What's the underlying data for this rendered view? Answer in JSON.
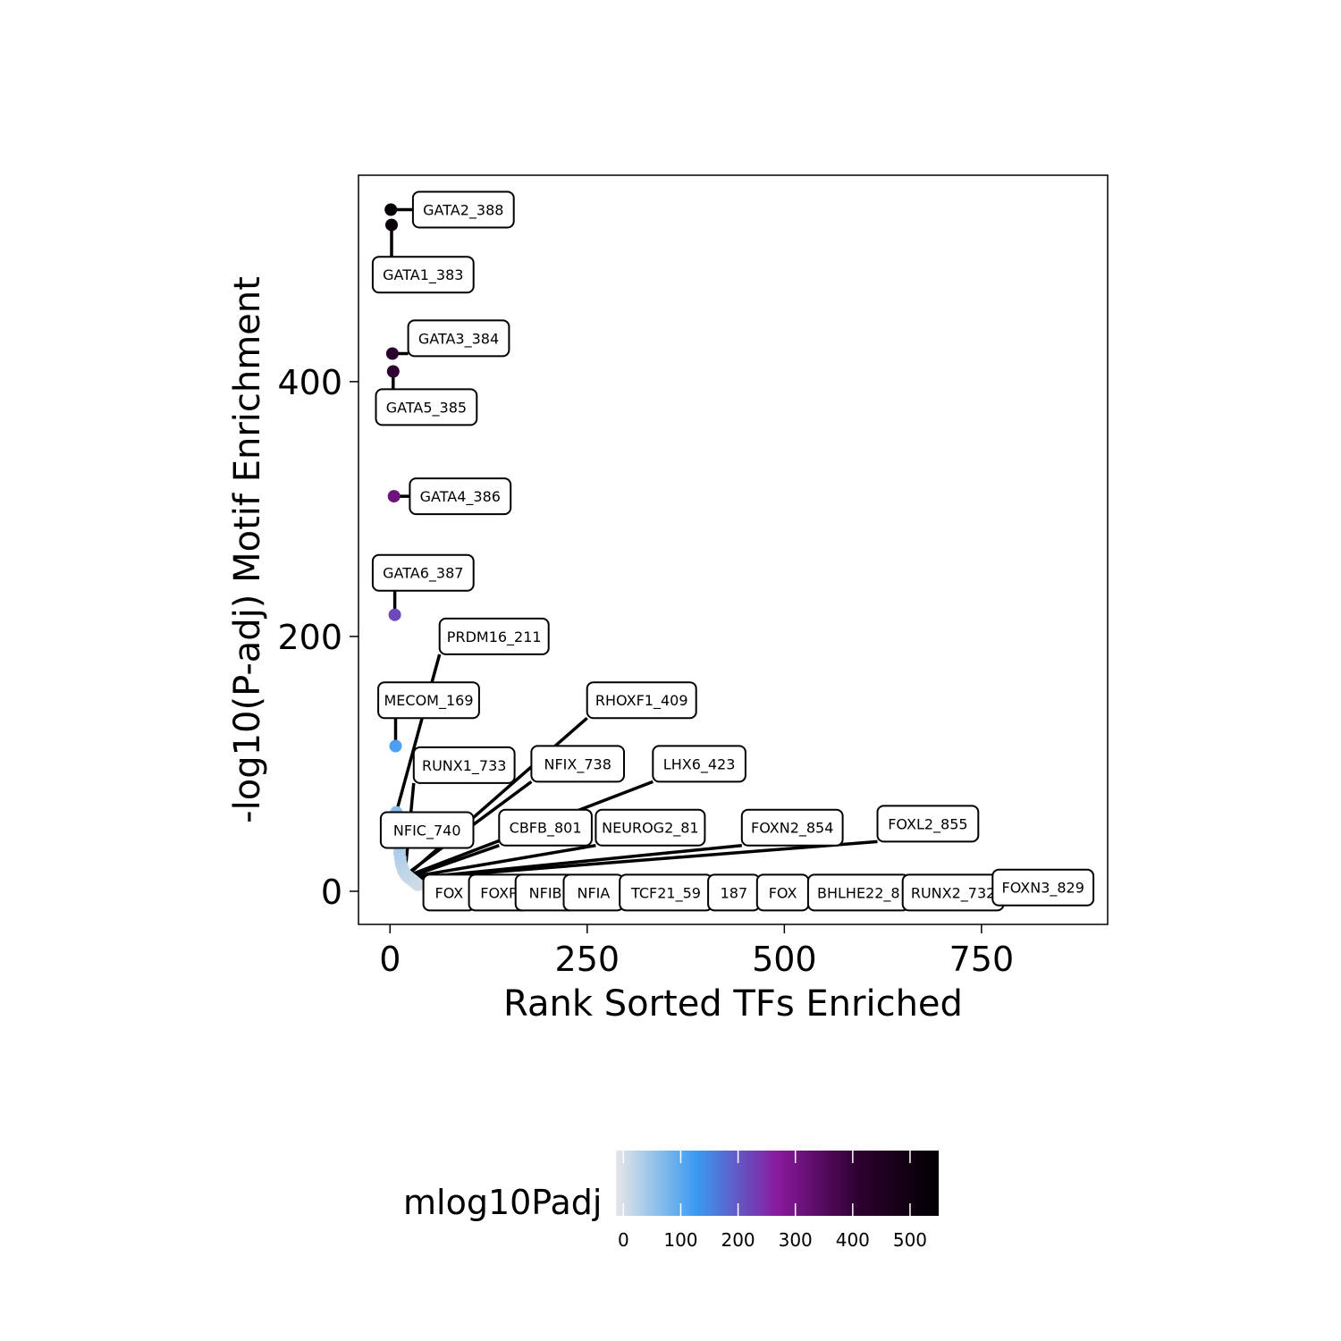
{
  "chart_data": {
    "type": "scatter",
    "xlabel": "Rank Sorted TFs Enriched",
    "ylabel": "-log10(P-adj) Motif Enrichment",
    "xlim": [
      -40,
      910
    ],
    "ylim": [
      -26,
      562
    ],
    "xticks": [
      0,
      250,
      500,
      750
    ],
    "yticks": [
      0,
      200,
      400
    ],
    "grid": false,
    "color_scale": {
      "title": "mlog10Padj",
      "ticks": [
        0,
        100,
        200,
        300,
        400,
        500
      ],
      "domain": [
        -13,
        550
      ],
      "stops": [
        "#E6E6E6",
        "#3A9AF0",
        "#8A1A9E",
        "#2E0030",
        "#000000"
      ]
    },
    "points": [
      {
        "rank": 1,
        "value": 535,
        "label": "GATA2_388"
      },
      {
        "rank": 2,
        "value": 523,
        "label": "GATA1_383"
      },
      {
        "rank": 3,
        "value": 422,
        "label": "GATA3_384"
      },
      {
        "rank": 4,
        "value": 408,
        "label": "GATA5_385"
      },
      {
        "rank": 5,
        "value": 310,
        "label": "GATA4_386"
      },
      {
        "rank": 6,
        "value": 217,
        "label": "GATA6_387"
      },
      {
        "rank": 7,
        "value": 114,
        "label": "MECOM_169"
      },
      {
        "rank": 8,
        "value": 62,
        "label": "PRDM16_211"
      },
      {
        "rank": 9,
        "value": 50,
        "label": ""
      },
      {
        "rank": 10,
        "value": 42,
        "label": ""
      },
      {
        "rank": 11,
        "value": 35,
        "label": ""
      },
      {
        "rank": 12,
        "value": 30,
        "label": ""
      },
      {
        "rank": 13,
        "value": 26,
        "label": ""
      },
      {
        "rank": 14,
        "value": 22,
        "label": "NFIC_740"
      },
      {
        "rank": 15,
        "value": 20,
        "label": ""
      },
      {
        "rank": 16,
        "value": 18,
        "label": ""
      },
      {
        "rank": 17,
        "value": 16,
        "label": ""
      },
      {
        "rank": 18,
        "value": 15,
        "label": ""
      },
      {
        "rank": 19,
        "value": 14,
        "label": "RUNX1_733"
      },
      {
        "rank": 20,
        "value": 13,
        "label": "NFIX_738"
      },
      {
        "rank": 21,
        "value": 12,
        "label": "RHOXF1_409"
      },
      {
        "rank": 22,
        "value": 12,
        "label": "LHX6_423"
      },
      {
        "rank": 23,
        "value": 11,
        "label": "CBFB_801"
      },
      {
        "rank": 24,
        "value": 11,
        "label": "NEUROG2_81"
      },
      {
        "rank": 25,
        "value": 10,
        "label": "FOXN2_854"
      },
      {
        "rank": 26,
        "value": 10,
        "label": "FOXL2_855"
      },
      {
        "rank": 27,
        "value": 9,
        "label": "FOXN3_829"
      },
      {
        "rank": 28,
        "value": 9,
        "label": "RUNX2_732"
      },
      {
        "rank": 29,
        "value": 8,
        "label": "BHLHE22_8"
      },
      {
        "rank": 30,
        "value": 8,
        "label": "TCF21_59"
      },
      {
        "rank": 31,
        "value": 7,
        "label": "NFIB"
      },
      {
        "rank": 32,
        "value": 7,
        "label": "NFIA"
      },
      {
        "rank": 33,
        "value": 6,
        "label": "FOX"
      },
      {
        "rank": 34,
        "value": 6,
        "label": "FOXP"
      },
      {
        "rank": 35,
        "value": 5,
        "label": "FOX"
      },
      {
        "rank": 36,
        "value": 5,
        "label": "187"
      }
    ],
    "labels": [
      {
        "text": "GATA2_388",
        "x": 93,
        "y": 535,
        "rank": 1
      },
      {
        "text": "GATA1_383",
        "x": 42,
        "y": 484,
        "rank": 2
      },
      {
        "text": "GATA3_384",
        "x": 87,
        "y": 434,
        "rank": 3
      },
      {
        "text": "GATA5_385",
        "x": 46,
        "y": 380,
        "rank": 4
      },
      {
        "text": "GATA4_386",
        "x": 89,
        "y": 310,
        "rank": 5
      },
      {
        "text": "GATA6_387",
        "x": 42,
        "y": 250,
        "rank": 6
      },
      {
        "text": "PRDM16_211",
        "x": 132,
        "y": 200,
        "rank": 8
      },
      {
        "text": "MECOM_169",
        "x": 49,
        "y": 150,
        "rank": 7
      },
      {
        "text": "RHOXF1_409",
        "x": 319,
        "y": 150,
        "rank": 21
      },
      {
        "text": "RUNX1_733",
        "x": 94,
        "y": 99,
        "rank": 19
      },
      {
        "text": "NFIX_738",
        "x": 238,
        "y": 100,
        "rank": 20
      },
      {
        "text": "LHX6_423",
        "x": 392,
        "y": 100,
        "rank": 22
      },
      {
        "text": "NFIC_740",
        "x": 47,
        "y": 48,
        "rank": 14
      },
      {
        "text": "CBFB_801",
        "x": 197,
        "y": 50,
        "rank": 23
      },
      {
        "text": "NEUROG2_81",
        "x": 330,
        "y": 50,
        "rank": 24
      },
      {
        "text": "FOXN2_854",
        "x": 510,
        "y": 50,
        "rank": 25
      },
      {
        "text": "FOXL2_855",
        "x": 682,
        "y": 53,
        "rank": 26
      },
      {
        "text": "FOX",
        "x": 75,
        "y": -1,
        "rank": 33
      },
      {
        "text": "FOXP",
        "x": 138,
        "y": -1,
        "rank": 34
      },
      {
        "text": "NFIB",
        "x": 197,
        "y": -1,
        "rank": 31
      },
      {
        "text": "NFIA",
        "x": 258,
        "y": -1,
        "rank": 32
      },
      {
        "text": "TCF21_59",
        "x": 350,
        "y": -1,
        "rank": 30
      },
      {
        "text": "187",
        "x": 436,
        "y": -1,
        "rank": 36
      },
      {
        "text": "FOX",
        "x": 498,
        "y": -1,
        "rank": 35
      },
      {
        "text": "BHLHE22_8",
        "x": 594,
        "y": -1,
        "rank": 29
      },
      {
        "text": "RUNX2_732",
        "x": 714,
        "y": -1,
        "rank": 28
      },
      {
        "text": "FOXN3_829",
        "x": 828,
        "y": 3,
        "rank": 27
      }
    ]
  }
}
